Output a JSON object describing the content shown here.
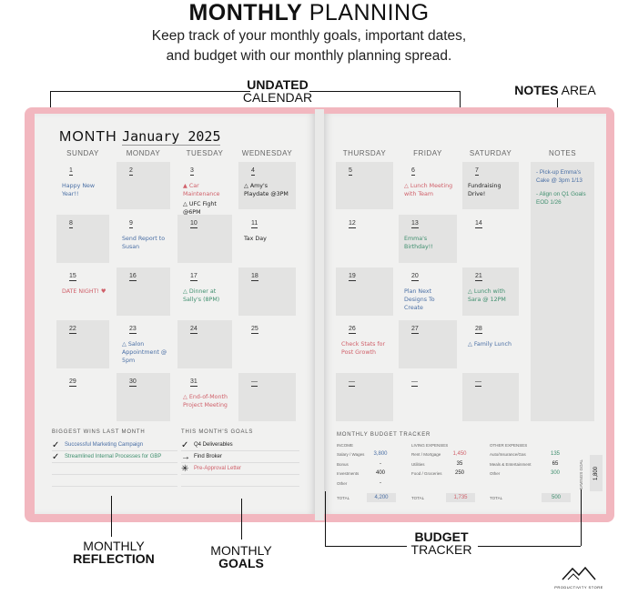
{
  "header": {
    "title_bold": "MONTHLY",
    "title_rest": "PLANNING",
    "subtitle_1": "Keep track of your monthly goals, important dates,",
    "subtitle_2": "and budget with our monthly planning spread."
  },
  "callouts": {
    "calendar_1": "UNDATED",
    "calendar_2": "CALENDAR",
    "notes_1": "NOTES",
    "notes_2": "AREA",
    "reflection_1": "MONTHLY",
    "reflection_2": "REFLECTION",
    "goals_1": "MONTHLY",
    "goals_2": "GOALS",
    "budget_1": "BUDGET",
    "budget_2": "TRACKER"
  },
  "colors": {
    "cover": "#f2b7bf",
    "page": "#f1f1f0",
    "blue": "#4a6fa5",
    "red": "#d0606a",
    "green": "#3f8f6e",
    "black": "#222"
  },
  "calendar": {
    "month_label": "MONTH",
    "month_value": "January 2025",
    "weekdays": [
      "SUNDAY",
      "MONDAY",
      "TUESDAY",
      "WEDNESDAY",
      "THURSDAY",
      "FRIDAY",
      "SATURDAY"
    ],
    "notes_label": "NOTES",
    "weeks": [
      [
        {
          "d": "1",
          "e": [
            {
              "t": "Happy New Year!!",
              "c": "blue"
            }
          ]
        },
        {
          "d": "2"
        },
        {
          "d": "3",
          "e": [
            {
              "t": "▲ Car Maintenance",
              "c": "red"
            },
            {
              "t": "△ UFC Fight @6PM",
              "c": "black"
            }
          ]
        },
        {
          "d": "4",
          "e": [
            {
              "t": "△ Amy's Playdate @3PM",
              "c": "black"
            }
          ]
        },
        {
          "d": "5"
        },
        {
          "d": "6",
          "e": [
            {
              "t": "△ Lunch Meeting with Team",
              "c": "red"
            }
          ]
        },
        {
          "d": "7",
          "e": [
            {
              "t": "Fundraising Drive!",
              "c": "black"
            }
          ]
        }
      ],
      [
        {
          "d": "8"
        },
        {
          "d": "9",
          "e": [
            {
              "t": "Send Report to Susan",
              "c": "blue"
            }
          ]
        },
        {
          "d": "10"
        },
        {
          "d": "11",
          "e": [
            {
              "t": "Tax Day",
              "c": "black"
            }
          ]
        },
        {
          "d": "12"
        },
        {
          "d": "13",
          "e": [
            {
              "t": "Emma's Birthday!!",
              "c": "green"
            }
          ]
        },
        {
          "d": "14"
        }
      ],
      [
        {
          "d": "15",
          "e": [
            {
              "t": "DATE NIGHT! ♥",
              "c": "red"
            }
          ]
        },
        {
          "d": "16"
        },
        {
          "d": "17",
          "e": [
            {
              "t": "△ Dinner at Sally's (8PM)",
              "c": "green"
            }
          ]
        },
        {
          "d": "18"
        },
        {
          "d": "19"
        },
        {
          "d": "20",
          "e": [
            {
              "t": "Plan Next Designs To Create",
              "c": "blue"
            }
          ]
        },
        {
          "d": "21",
          "e": [
            {
              "t": "△ Lunch with Sara @ 12PM",
              "c": "green"
            }
          ]
        }
      ],
      [
        {
          "d": "22"
        },
        {
          "d": "23",
          "e": [
            {
              "t": "△ Salon Appointment @ 5pm",
              "c": "blue"
            }
          ]
        },
        {
          "d": "24"
        },
        {
          "d": "25"
        },
        {
          "d": "26",
          "e": [
            {
              "t": "Check Stats for Post Growth",
              "c": "red"
            }
          ]
        },
        {
          "d": "27"
        },
        {
          "d": "28",
          "e": [
            {
              "t": "△ Family Lunch",
              "c": "blue"
            }
          ]
        }
      ],
      [
        {
          "d": "29"
        },
        {
          "d": "30"
        },
        {
          "d": "31",
          "e": [
            {
              "t": "△ End-of-Month Project Meeting",
              "c": "red"
            }
          ]
        },
        {
          "d": "—"
        },
        {
          "d": "—"
        },
        {
          "d": "—"
        },
        {
          "d": "—"
        }
      ]
    ],
    "notes": [
      {
        "t": "- Pick-up Emma's Cake @ 3pm 1/13",
        "c": "blue"
      },
      {
        "t": "- Align on Q1 Goals EOD 1/26",
        "c": "green"
      }
    ]
  },
  "wins": {
    "title": "BIGGEST WINS LAST MONTH",
    "items": [
      {
        "icon": "✓",
        "t": "Successful Marketing Campaign",
        "c": "blue"
      },
      {
        "icon": "✓",
        "t": "Streamlined Internal Processes for GBP",
        "c": "green"
      }
    ]
  },
  "goals": {
    "title": "THIS MONTH'S GOALS",
    "items": [
      {
        "icon": "✓",
        "t": "Q4 Deliverables",
        "c": "black"
      },
      {
        "icon": "→",
        "t": "Find Broker",
        "c": "black"
      },
      {
        "icon": "✳",
        "t": "Pre-Approval Letter",
        "c": "red"
      }
    ]
  },
  "budget": {
    "title": "MONTHLY BUDGET TRACKER",
    "income": {
      "title": "INCOME",
      "rows": [
        [
          "Salary / Wages",
          "3,800"
        ],
        [
          "Bonus",
          "-"
        ],
        [
          "Investments",
          "400"
        ],
        [
          "Other",
          "-"
        ]
      ],
      "total_label": "TOTAL",
      "total": "4,200"
    },
    "living": {
      "title": "LIVING EXPENSES",
      "rows": [
        [
          "Rent / Mortgage",
          "1,450"
        ],
        [
          "Utilities",
          "35"
        ],
        [
          "Food / Groceries",
          "250"
        ]
      ],
      "total_label": "TOTAL",
      "total": "1,735"
    },
    "other": {
      "title": "OTHER EXPENSES",
      "rows": [
        [
          "Auto/Insurance/Gas",
          "135"
        ],
        [
          "Meals & Entertainment",
          "65"
        ],
        [
          "Other",
          "300"
        ]
      ],
      "total_label": "TOTAL",
      "total": "500"
    },
    "savings_label": "SAVINGS GOAL",
    "savings": "1,800"
  },
  "logo": {
    "text": "PRODUCTIVITY STORE"
  }
}
